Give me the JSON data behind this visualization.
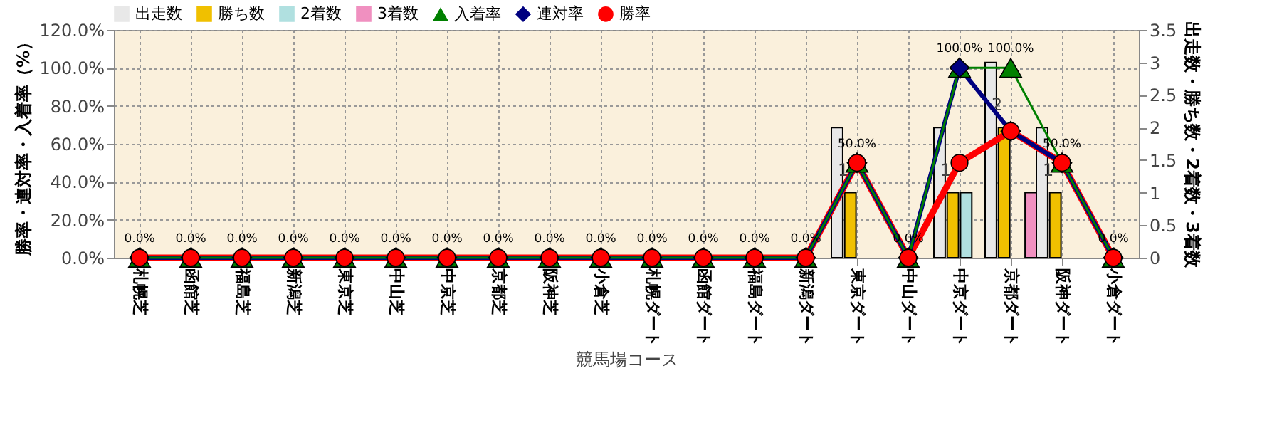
{
  "chart_data": {
    "type": "bar",
    "xlabel": "競馬場コース",
    "ylabel": "勝率・連対率・入着率（%）",
    "y2label": "出走数・勝ち数・2着数・3着数",
    "categories": [
      "札幌芝",
      "函館芝",
      "福島芝",
      "新潟芝",
      "東京芝",
      "中山芝",
      "中京芝",
      "京都芝",
      "阪神芝",
      "小倉芝",
      "札幌ダート",
      "函館ダート",
      "福島ダート",
      "新潟ダート",
      "東京ダート",
      "中山ダート",
      "中京ダート",
      "京都ダート",
      "阪神ダート",
      "小倉ダート"
    ],
    "series": [
      {
        "name": "出走数",
        "type": "bar",
        "axis": "y2",
        "color": "#e8e8e8",
        "values": [
          0,
          0,
          0,
          0,
          0,
          0,
          0,
          0,
          0,
          0,
          0,
          0,
          0,
          0,
          2,
          0,
          2,
          3,
          2,
          0
        ]
      },
      {
        "name": "勝ち数",
        "type": "bar",
        "axis": "y2",
        "color": "#f0c000",
        "values": [
          0,
          0,
          0,
          0,
          0,
          0,
          0,
          0,
          0,
          0,
          0,
          0,
          0,
          0,
          1,
          0,
          1,
          2,
          1,
          0
        ],
        "value_labels": [
          null,
          null,
          null,
          null,
          null,
          null,
          null,
          null,
          null,
          null,
          null,
          null,
          null,
          null,
          "1",
          null,
          "1",
          "2",
          "1",
          null
        ]
      },
      {
        "name": "2着数",
        "type": "bar",
        "axis": "y2",
        "color": "#b0e0e0",
        "values": [
          0,
          0,
          0,
          0,
          0,
          0,
          0,
          0,
          0,
          0,
          0,
          0,
          0,
          0,
          0,
          0,
          1,
          0,
          0,
          0
        ]
      },
      {
        "name": "3着数",
        "type": "bar",
        "axis": "y2",
        "color": "#f090c0",
        "values": [
          0,
          0,
          0,
          0,
          0,
          0,
          0,
          0,
          0,
          0,
          0,
          0,
          0,
          0,
          0,
          0,
          0,
          1,
          0,
          0
        ]
      },
      {
        "name": "入着率",
        "type": "line",
        "marker": "triangle",
        "color": "#008000",
        "values": [
          0,
          0,
          0,
          0,
          0,
          0,
          0,
          0,
          0,
          0,
          0,
          0,
          0,
          0,
          50,
          0,
          100,
          100,
          50,
          0
        ],
        "value_labels": [
          "0.0%",
          "0.0%",
          "0.0%",
          "0.0%",
          "0.0%",
          "0.0%",
          "0.0%",
          "0.0%",
          "0.0%",
          "0.0%",
          "0.0%",
          "0.0%",
          "0.0%",
          "0.0%",
          "50.0%",
          "0.0%",
          "100.0%",
          "100.0%",
          "50.0%",
          "0.0%"
        ]
      },
      {
        "name": "連対率",
        "type": "line",
        "marker": "diamond",
        "color": "#000080",
        "values": [
          0,
          0,
          0,
          0,
          0,
          0,
          0,
          0,
          0,
          0,
          0,
          0,
          0,
          0,
          50,
          0,
          100,
          66.7,
          50,
          0
        ]
      },
      {
        "name": "勝率",
        "type": "line",
        "marker": "circle",
        "color": "#ff0000",
        "values": [
          0,
          0,
          0,
          0,
          0,
          0,
          0,
          0,
          0,
          0,
          0,
          0,
          0,
          0,
          50,
          0,
          50,
          66.7,
          50,
          0
        ]
      }
    ],
    "ylim": [
      0,
      120
    ],
    "yticks": [
      {
        "value": 0,
        "label": "0.0%"
      },
      {
        "value": 20,
        "label": "20.0%"
      },
      {
        "value": 40,
        "label": "40.0%"
      },
      {
        "value": 60,
        "label": "60.0%"
      },
      {
        "value": 80,
        "label": "80.0%"
      },
      {
        "value": 100,
        "label": "100.0%"
      },
      {
        "value": 120,
        "label": "120.0%"
      }
    ],
    "y2lim": [
      0,
      3.5
    ],
    "y2ticks": [
      0,
      0.5,
      1,
      1.5,
      2,
      2.5,
      3,
      3.5
    ],
    "grid": true,
    "legend": "top"
  }
}
